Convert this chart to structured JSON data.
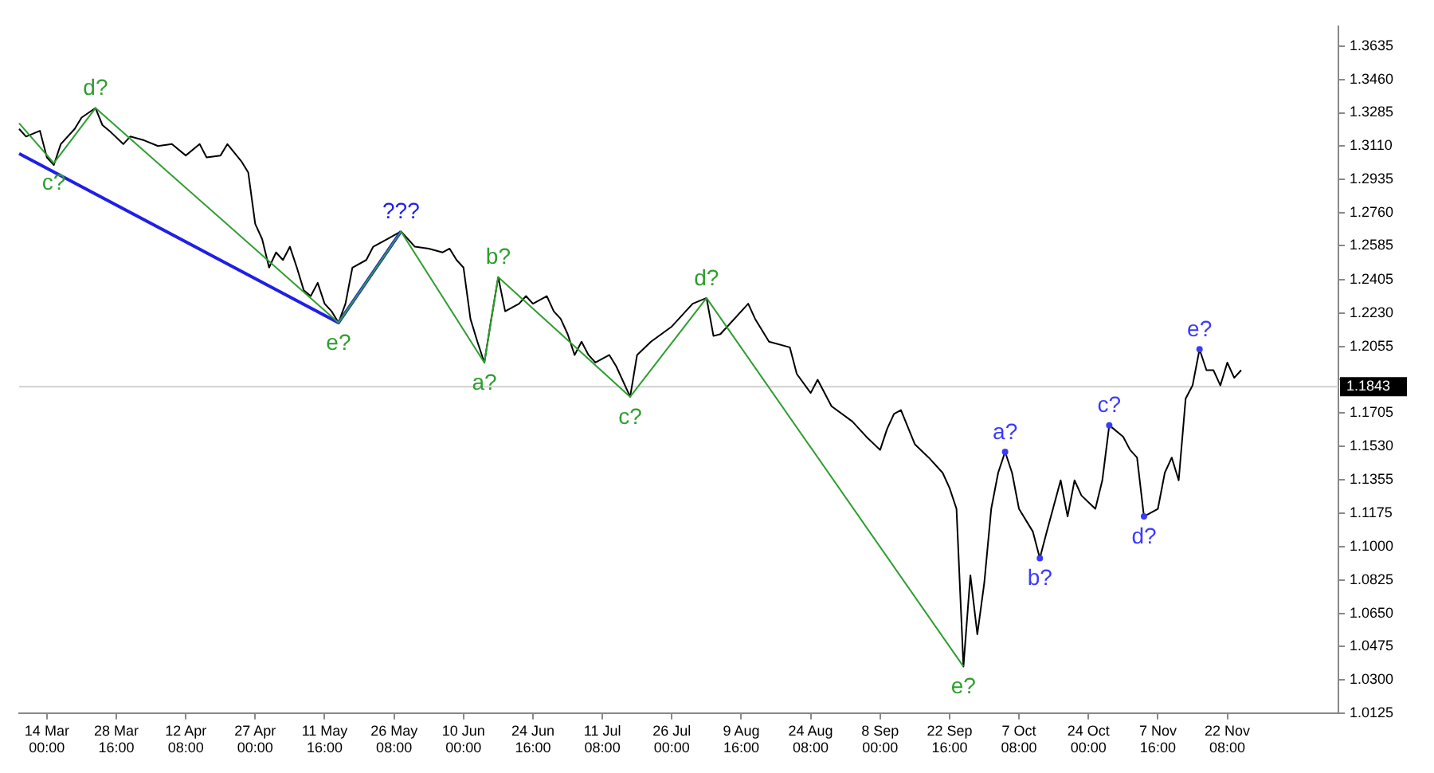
{
  "chart_data": {
    "type": "line",
    "ylim": [
      1.0125,
      1.3741
    ],
    "categories": [
      null,
      null,
      null,
      null,
      "14 Mar 00:00",
      null,
      null,
      null,
      null,
      null,
      null,
      null,
      null,
      null,
      "28 Mar 16:00",
      null,
      null,
      null,
      null,
      null,
      null,
      null,
      null,
      null,
      "12 Apr 08:00",
      null,
      null,
      null,
      null,
      null,
      null,
      null,
      null,
      null,
      "27 Apr 00:00",
      null,
      null,
      null,
      null,
      null,
      null,
      null,
      null,
      null,
      "11 May 16:00",
      null,
      null,
      null,
      null,
      null,
      null,
      null,
      null,
      null,
      "26 May 08:00",
      null,
      null,
      null,
      null,
      null,
      null,
      null,
      null,
      null,
      "10 Jun 00:00",
      null,
      null,
      null,
      null,
      null,
      null,
      null,
      null,
      null,
      "24 Jun 16:00",
      null,
      null,
      null,
      null,
      null,
      null,
      null,
      null,
      null,
      "11 Jul 08:00",
      null,
      null,
      null,
      null,
      null,
      null,
      null,
      null,
      null,
      "26 Jul 00:00",
      null,
      null,
      null,
      null,
      null,
      null,
      null,
      null,
      null,
      "9 Aug 16:00",
      null,
      null,
      null,
      null,
      null,
      null,
      null,
      null,
      null,
      "24 Aug 08:00",
      null,
      null,
      null,
      null,
      null,
      null,
      null,
      null,
      null,
      "8 Sep 00:00",
      null,
      null,
      null,
      null,
      null,
      null,
      null,
      null,
      null,
      "22 Sep 16:00",
      null,
      null,
      null,
      null,
      null,
      null,
      null,
      null,
      null,
      "7 Oct 08:00",
      null,
      null,
      null,
      null,
      null,
      null,
      null,
      null,
      null,
      "24 Oct 00:00",
      null,
      null,
      null,
      null,
      null,
      null,
      null,
      null,
      null,
      "7 Nov 16:00",
      null,
      null,
      null,
      null,
      null,
      null,
      null,
      null,
      null,
      "22 Nov 08:00",
      null,
      null,
      null,
      null,
      null,
      null,
      null,
      null,
      null,
      null,
      null,
      null,
      null,
      null,
      null,
      null
    ],
    "yticks": [
      {
        "value": 1.0125,
        "label": "1.0125"
      },
      {
        "value": 1.03,
        "label": "1.0300"
      },
      {
        "value": 1.0475,
        "label": "1.0475"
      },
      {
        "value": 1.065,
        "label": "1.0650"
      },
      {
        "value": 1.0825,
        "label": "1.0825"
      },
      {
        "value": 1.1,
        "label": "1.1000"
      },
      {
        "value": 1.1175,
        "label": "1.1175"
      },
      {
        "value": 1.1355,
        "label": "1.1355"
      },
      {
        "value": 1.153,
        "label": "1.1530"
      },
      {
        "value": 1.1705,
        "label": "1.1705"
      },
      {
        "value": 1.188,
        "label": null
      },
      {
        "value": 1.2055,
        "label": "1.2055"
      },
      {
        "value": 1.223,
        "label": "1.2230"
      },
      {
        "value": 1.2405,
        "label": "1.2405"
      },
      {
        "value": 1.2585,
        "label": "1.2585"
      },
      {
        "value": 1.276,
        "label": "1.2760"
      },
      {
        "value": 1.2935,
        "label": "1.2935"
      },
      {
        "value": 1.311,
        "label": "1.3110"
      },
      {
        "value": 1.3285,
        "label": "1.3285"
      },
      {
        "value": 1.346,
        "label": "1.3460"
      },
      {
        "value": 1.3635,
        "label": "1.3635"
      }
    ],
    "grid": false,
    "legend": false,
    "marker": "none",
    "series": [
      {
        "color": "#000000",
        "values": [
          1.32,
          1.316,
          null,
          1.319,
          1.305,
          1.301,
          1.312,
          null,
          1.32,
          1.326,
          null,
          1.331,
          1.322,
          1.319,
          null,
          1.312,
          1.316,
          null,
          1.314,
          null,
          1.311,
          null,
          1.312,
          null,
          1.306,
          null,
          1.312,
          1.305,
          null,
          1.306,
          1.312,
          null,
          1.303,
          1.297,
          1.27,
          1.262,
          1.247,
          1.255,
          1.251,
          1.258,
          1.247,
          1.235,
          1.232,
          1.239,
          1.228,
          1.224,
          1.218,
          1.228,
          1.247,
          null,
          1.251,
          1.258,
          null,
          1.262,
          null,
          1.266,
          null,
          1.258,
          null,
          1.257,
          null,
          1.255,
          1.257,
          1.251,
          1.247,
          1.22,
          1.208,
          1.197,
          1.22,
          1.242,
          1.224,
          null,
          1.228,
          1.232,
          1.228,
          null,
          1.232,
          1.224,
          1.22,
          1.212,
          1.201,
          1.208,
          1.201,
          1.197,
          null,
          1.201,
          1.195,
          null,
          1.179,
          1.201,
          null,
          1.208,
          null,
          null,
          1.216,
          1.22,
          null,
          1.228,
          null,
          1.231,
          1.211,
          1.212,
          null,
          null,
          null,
          1.228,
          1.22,
          null,
          1.208,
          null,
          null,
          1.205,
          1.191,
          null,
          1.181,
          1.188,
          null,
          1.174,
          null,
          null,
          1.166,
          null,
          1.158,
          null,
          1.151,
          1.162,
          1.17,
          1.172,
          null,
          1.154,
          null,
          1.147,
          null,
          1.139,
          1.131,
          1.12,
          1.037,
          1.085,
          1.054,
          1.081,
          1.12,
          1.139,
          1.15,
          1.139,
          1.12,
          null,
          1.108,
          1.094,
          1.108,
          null,
          1.135,
          1.116,
          1.135,
          1.127,
          null,
          1.12,
          1.135,
          1.164,
          null,
          1.158,
          1.151,
          1.147,
          1.116,
          null,
          1.12,
          1.139,
          1.147,
          1.135,
          1.178,
          1.185,
          1.204,
          1.193,
          1.193,
          1.185,
          1.197,
          1.189,
          1.193,
          null,
          null,
          null,
          null,
          null,
          null,
          null,
          null,
          null,
          null,
          null,
          null,
          null,
          null
        ]
      },
      {
        "color": "#2e9e2e",
        "values": [
          1.323,
          null,
          null,
          null,
          null,
          1.302,
          null,
          null,
          null,
          null,
          null,
          1.331,
          null,
          null,
          null,
          null,
          null,
          null,
          null,
          null,
          null,
          null,
          null,
          null,
          null,
          null,
          null,
          null,
          null,
          null,
          null,
          null,
          null,
          null,
          null,
          null,
          null,
          null,
          null,
          null,
          null,
          null,
          null,
          null,
          null,
          null,
          1.218,
          null,
          null,
          null,
          null,
          null,
          null,
          null,
          null,
          1.266,
          null,
          null,
          null,
          null,
          null,
          null,
          null,
          null,
          null,
          null,
          null,
          1.197,
          null,
          1.242,
          null,
          null,
          null,
          null,
          null,
          null,
          null,
          null,
          null,
          null,
          null,
          null,
          null,
          null,
          null,
          null,
          null,
          null,
          1.179,
          null,
          null,
          null,
          null,
          null,
          null,
          null,
          null,
          null,
          null,
          1.231,
          null,
          null,
          null,
          null,
          null,
          null,
          null,
          null,
          null,
          null,
          null,
          null,
          null,
          null,
          null,
          null,
          null,
          null,
          null,
          null,
          null,
          null,
          null,
          null,
          null,
          null,
          null,
          null,
          null,
          null,
          null,
          null,
          null,
          null,
          null,
          null,
          1.037,
          null,
          null,
          null,
          null,
          null,
          null,
          null,
          null,
          null,
          null,
          null,
          null,
          null,
          null,
          null,
          null,
          null,
          null,
          null,
          null,
          null,
          null,
          null,
          null,
          null,
          null,
          null,
          null,
          null,
          null,
          null,
          null,
          null,
          null,
          null,
          null,
          null,
          null,
          null,
          null,
          null,
          null,
          null,
          null,
          null,
          null,
          null,
          null,
          null,
          null,
          null,
          null,
          null,
          null
        ],
        "value_labels": [
          null,
          null,
          null,
          null,
          null,
          "c?",
          null,
          null,
          null,
          null,
          null,
          "d?",
          null,
          null,
          null,
          null,
          null,
          null,
          null,
          null,
          null,
          null,
          null,
          null,
          null,
          null,
          null,
          null,
          null,
          null,
          null,
          null,
          null,
          null,
          null,
          null,
          null,
          null,
          null,
          null,
          null,
          null,
          null,
          null,
          null,
          null,
          "e?",
          null,
          null,
          null,
          null,
          null,
          null,
          null,
          null,
          null,
          null,
          null,
          null,
          null,
          null,
          null,
          null,
          null,
          null,
          null,
          null,
          "a?",
          null,
          "b?",
          null,
          null,
          null,
          null,
          null,
          null,
          null,
          null,
          null,
          null,
          null,
          null,
          null,
          null,
          null,
          null,
          null,
          null,
          "c?",
          null,
          null,
          null,
          null,
          null,
          null,
          null,
          null,
          null,
          null,
          "d?",
          null,
          null,
          null,
          null,
          null,
          null,
          null,
          null,
          null,
          null,
          null,
          null,
          null,
          null,
          null,
          null,
          null,
          null,
          null,
          null,
          null,
          null,
          null,
          null,
          null,
          null,
          null,
          null,
          null,
          null,
          null,
          null,
          null,
          null,
          null,
          null,
          "e?",
          null,
          null,
          null,
          null,
          null,
          null,
          null,
          null,
          null,
          null,
          null,
          null,
          null,
          null,
          null,
          null,
          null,
          null,
          null,
          null,
          null,
          null,
          null,
          null,
          null,
          null,
          null,
          null,
          null,
          null,
          null,
          null,
          null,
          null,
          null,
          null,
          null,
          null,
          null,
          null,
          null,
          null,
          null,
          null,
          null,
          null,
          null,
          null,
          null,
          null,
          null,
          null,
          null,
          null
        ]
      },
      {
        "color": "#1f1fe6",
        "values": [
          1.307,
          null,
          null,
          null,
          null,
          null,
          null,
          null,
          null,
          null,
          null,
          null,
          null,
          null,
          null,
          null,
          null,
          null,
          null,
          null,
          null,
          null,
          null,
          null,
          null,
          null,
          null,
          null,
          null,
          null,
          null,
          null,
          null,
          null,
          null,
          null,
          null,
          null,
          null,
          null,
          null,
          null,
          null,
          null,
          null,
          null,
          1.218,
          null,
          null,
          null,
          null,
          null,
          null,
          null,
          null,
          1.266,
          null,
          null,
          null,
          null,
          null,
          null,
          null,
          null,
          null,
          null,
          null,
          null,
          null,
          null,
          null,
          null,
          null,
          null,
          null,
          null,
          null,
          null,
          null,
          null,
          null,
          null,
          null,
          null,
          null,
          null,
          null,
          null,
          null,
          null,
          null,
          null,
          null,
          null,
          null,
          null,
          null,
          null,
          null,
          null,
          null,
          null,
          null,
          null,
          null,
          null,
          null,
          null,
          null,
          null,
          null,
          null,
          null,
          null,
          null,
          null,
          null,
          null,
          null,
          null,
          null,
          null,
          null,
          null,
          null,
          null,
          null,
          null,
          null,
          null,
          null,
          null,
          null,
          null,
          null,
          null,
          null,
          null,
          null,
          null,
          null,
          null,
          null,
          null,
          null,
          null,
          null,
          null,
          null,
          null,
          null,
          null,
          null,
          null,
          null,
          null,
          null,
          null,
          null,
          null,
          null,
          null,
          null,
          null,
          null,
          null,
          null,
          null,
          null,
          null,
          null,
          null,
          null,
          null,
          null,
          null,
          null,
          null,
          null,
          null,
          null,
          null,
          null,
          null,
          null,
          null,
          null,
          null,
          null,
          null,
          null
        ],
        "value_labels": [
          null,
          null,
          null,
          null,
          null,
          null,
          null,
          null,
          null,
          null,
          null,
          null,
          null,
          null,
          null,
          null,
          null,
          null,
          null,
          null,
          null,
          null,
          null,
          null,
          null,
          null,
          null,
          null,
          null,
          null,
          null,
          null,
          null,
          null,
          null,
          null,
          null,
          null,
          null,
          null,
          null,
          null,
          null,
          null,
          null,
          null,
          null,
          null,
          null,
          null,
          null,
          null,
          null,
          null,
          null,
          "???",
          null,
          null,
          null,
          null,
          null,
          null,
          null,
          null,
          null,
          null,
          null,
          null,
          null,
          null,
          null,
          null,
          null,
          null,
          null,
          null,
          null,
          null,
          null,
          null,
          null,
          null,
          null,
          null,
          null,
          null,
          null,
          null,
          null,
          null,
          null,
          null,
          null,
          null,
          null,
          null,
          null,
          null,
          null,
          null,
          null,
          null,
          null,
          null,
          null,
          null,
          null,
          null,
          null,
          null,
          null,
          null,
          null,
          null,
          null,
          null,
          null,
          null,
          null,
          null,
          null,
          null,
          null,
          null,
          null,
          null,
          null,
          null,
          null,
          null,
          null,
          null,
          null,
          null,
          null,
          null,
          null,
          null,
          null,
          null,
          null,
          null,
          null,
          null,
          null,
          null,
          null,
          null,
          null,
          null,
          null,
          null,
          null,
          null,
          null,
          null,
          null,
          null,
          null,
          null,
          null,
          null,
          null,
          null,
          null,
          null,
          null,
          null,
          null,
          null,
          null,
          null,
          null,
          null,
          null,
          null,
          null,
          null,
          null,
          null,
          null,
          null,
          null,
          null,
          null,
          null,
          null,
          null,
          null,
          null,
          null
        ]
      },
      {
        "type": "scatter",
        "color": "#3a3aff",
        "marker": "circle",
        "values": [
          null,
          null,
          null,
          null,
          null,
          null,
          null,
          null,
          null,
          null,
          null,
          null,
          null,
          null,
          null,
          null,
          null,
          null,
          null,
          null,
          null,
          null,
          null,
          null,
          null,
          null,
          null,
          null,
          null,
          null,
          null,
          null,
          null,
          null,
          null,
          null,
          null,
          null,
          null,
          null,
          null,
          null,
          null,
          null,
          null,
          null,
          null,
          null,
          null,
          null,
          null,
          null,
          null,
          null,
          null,
          null,
          null,
          null,
          null,
          null,
          null,
          null,
          null,
          null,
          null,
          null,
          null,
          null,
          null,
          null,
          null,
          null,
          null,
          null,
          null,
          null,
          null,
          null,
          null,
          null,
          null,
          null,
          null,
          null,
          null,
          null,
          null,
          null,
          null,
          null,
          null,
          null,
          null,
          null,
          null,
          null,
          null,
          null,
          null,
          null,
          null,
          null,
          null,
          null,
          null,
          null,
          null,
          null,
          null,
          null,
          null,
          null,
          null,
          null,
          null,
          null,
          null,
          null,
          null,
          null,
          null,
          null,
          null,
          null,
          null,
          null,
          null,
          null,
          null,
          null,
          null,
          null,
          null,
          null,
          null,
          null,
          null,
          null,
          null,
          null,
          null,
          null,
          1.15,
          null,
          null,
          null,
          null,
          1.094,
          null,
          null,
          null,
          null,
          null,
          null,
          null,
          null,
          null,
          1.164,
          null,
          null,
          null,
          null,
          1.116,
          null,
          null,
          null,
          null,
          null,
          null,
          null,
          1.204,
          null,
          null,
          null,
          null,
          null,
          null,
          null,
          null,
          null,
          null,
          null,
          null,
          null,
          null,
          null,
          null,
          null,
          null,
          null,
          null
        ],
        "value_labels": [
          null,
          null,
          null,
          null,
          null,
          null,
          null,
          null,
          null,
          null,
          null,
          null,
          null,
          null,
          null,
          null,
          null,
          null,
          null,
          null,
          null,
          null,
          null,
          null,
          null,
          null,
          null,
          null,
          null,
          null,
          null,
          null,
          null,
          null,
          null,
          null,
          null,
          null,
          null,
          null,
          null,
          null,
          null,
          null,
          null,
          null,
          null,
          null,
          null,
          null,
          null,
          null,
          null,
          null,
          null,
          null,
          null,
          null,
          null,
          null,
          null,
          null,
          null,
          null,
          null,
          null,
          null,
          null,
          null,
          null,
          null,
          null,
          null,
          null,
          null,
          null,
          null,
          null,
          null,
          null,
          null,
          null,
          null,
          null,
          null,
          null,
          null,
          null,
          null,
          null,
          null,
          null,
          null,
          null,
          null,
          null,
          null,
          null,
          null,
          null,
          null,
          null,
          null,
          null,
          null,
          null,
          null,
          null,
          null,
          null,
          null,
          null,
          null,
          null,
          null,
          null,
          null,
          null,
          null,
          null,
          null,
          null,
          null,
          null,
          null,
          null,
          null,
          null,
          null,
          null,
          null,
          null,
          null,
          null,
          null,
          null,
          null,
          null,
          null,
          null,
          null,
          null,
          "a?",
          null,
          null,
          null,
          null,
          "b?",
          null,
          null,
          null,
          null,
          null,
          null,
          null,
          null,
          null,
          "c?",
          null,
          null,
          null,
          null,
          "d?",
          null,
          null,
          null,
          null,
          null,
          null,
          null,
          "e?",
          null,
          null,
          null,
          null,
          null,
          null,
          null,
          null,
          null,
          null,
          null,
          null,
          null,
          null,
          null,
          null,
          null,
          null,
          null,
          null
        ]
      }
    ],
    "ref_lines": [
      {
        "axis": "y",
        "value": 1.1843,
        "label": "1.1843",
        "color": "#d0d0d0"
      }
    ]
  }
}
